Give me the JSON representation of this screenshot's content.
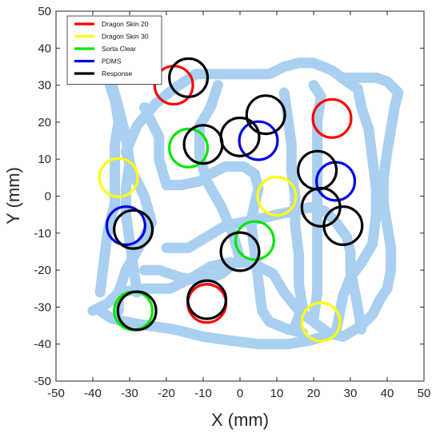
{
  "chart_data": {
    "type": "scatter",
    "xlabel": "X (mm)",
    "ylabel": "Y (mm)",
    "xlim": [
      -50,
      50
    ],
    "ylim": [
      -50,
      50
    ],
    "xticks": [
      -50,
      -40,
      -30,
      -20,
      -10,
      0,
      10,
      20,
      30,
      40,
      50
    ],
    "yticks": [
      -50,
      -40,
      -30,
      -20,
      -10,
      0,
      10,
      20,
      30,
      40,
      50
    ],
    "grid": false,
    "legend_position": "top-left",
    "circle_radius_mm": 5.2,
    "series": [
      {
        "name": "Dragon Skin 20",
        "color": "#ff0000",
        "points": [
          [
            -18,
            30
          ],
          [
            25,
            21
          ],
          [
            -9,
            -29
          ]
        ]
      },
      {
        "name": "Dragon Skin 30",
        "color": "#ffff00",
        "points": [
          [
            -33,
            5
          ],
          [
            10,
            0
          ],
          [
            22,
            -34
          ]
        ]
      },
      {
        "name": "Sorta Clear",
        "color": "#00e600",
        "points": [
          [
            -14,
            13
          ],
          [
            4,
            -12
          ],
          [
            -29,
            -31
          ]
        ]
      },
      {
        "name": "PDMS",
        "color": "#0000e6",
        "points": [
          [
            5,
            15
          ],
          [
            26,
            4
          ],
          [
            -31,
            -8
          ]
        ]
      },
      {
        "name": "Response",
        "color": "#000000",
        "points": [
          [
            -14,
            32
          ],
          [
            7,
            22
          ],
          [
            0,
            16
          ],
          [
            -10,
            14
          ],
          [
            21,
            7
          ],
          [
            22,
            -3
          ],
          [
            28,
            -8
          ],
          [
            -29,
            -9
          ],
          [
            0,
            -15
          ],
          [
            -28,
            -31
          ],
          [
            -9,
            -28
          ]
        ]
      }
    ],
    "trace": {
      "color": "#a9d0f0",
      "paths": [
        [
          [
            -33,
            -31
          ],
          [
            -33,
            -26
          ],
          [
            -31,
            -20
          ],
          [
            -27,
            -13
          ],
          [
            -24,
            -7
          ],
          [
            -26,
            0
          ],
          [
            -29,
            6
          ],
          [
            -31,
            12
          ],
          [
            -28,
            19
          ],
          [
            -23,
            25
          ],
          [
            -18,
            29
          ],
          [
            -12,
            33
          ],
          [
            -5,
            33
          ],
          [
            2,
            33
          ],
          [
            8,
            33
          ],
          [
            12,
            35
          ],
          [
            16,
            36
          ],
          [
            20,
            36
          ],
          [
            25,
            34
          ],
          [
            29,
            31
          ],
          [
            32,
            29
          ],
          [
            33,
            24
          ],
          [
            35,
            18
          ],
          [
            36,
            10
          ],
          [
            37,
            2
          ],
          [
            37,
            -5
          ],
          [
            36,
            -13
          ],
          [
            33,
            -18
          ],
          [
            30,
            -22
          ],
          [
            28,
            -27
          ],
          [
            27,
            -32
          ],
          [
            26,
            -37
          ],
          [
            19,
            -39
          ],
          [
            13,
            -40
          ],
          [
            5,
            -40
          ],
          [
            -3,
            -39
          ],
          [
            -10,
            -38
          ],
          [
            -18,
            -36
          ],
          [
            -25,
            -35
          ],
          [
            -31,
            -34
          ],
          [
            -35,
            -33
          ],
          [
            -38,
            -31
          ]
        ],
        [
          [
            -26,
            24
          ],
          [
            -24,
            20
          ],
          [
            -22,
            16
          ],
          [
            -22,
            10
          ],
          [
            -20,
            3
          ],
          [
            -16,
            3
          ],
          [
            -11,
            4
          ],
          [
            -8,
            6
          ],
          [
            -4,
            8
          ],
          [
            1,
            8
          ],
          [
            4,
            6
          ],
          [
            5,
            2
          ],
          [
            4,
            -2
          ],
          [
            3,
            -7
          ],
          [
            4,
            -15
          ],
          [
            5,
            -23
          ],
          [
            6,
            -31
          ],
          [
            8,
            -34
          ],
          [
            13,
            -36
          ],
          [
            17,
            -37
          ]
        ],
        [
          [
            -35,
            31
          ],
          [
            -33,
            24
          ],
          [
            -31,
            16
          ],
          [
            -30,
            9
          ],
          [
            -31,
            2
          ],
          [
            -31,
            -5
          ],
          [
            -30,
            -12
          ],
          [
            -29,
            -19
          ],
          [
            -28,
            -26
          ]
        ],
        [
          [
            -38,
            -26
          ],
          [
            -37,
            -18
          ],
          [
            -36,
            -10
          ],
          [
            -34,
            -2
          ],
          [
            -34,
            6
          ],
          [
            -34,
            14
          ],
          [
            -33,
            20
          ],
          [
            -34,
            26
          ],
          [
            -36,
            32
          ]
        ],
        [
          [
            20,
            30
          ],
          [
            22,
            27
          ],
          [
            21,
            20
          ],
          [
            21,
            13
          ],
          [
            21,
            6
          ],
          [
            21,
            -2
          ],
          [
            21,
            -10
          ],
          [
            21,
            -18
          ],
          [
            21,
            -26
          ],
          [
            20,
            -33
          ]
        ],
        [
          [
            12,
            28
          ],
          [
            13,
            21
          ],
          [
            14,
            14
          ],
          [
            14,
            7
          ],
          [
            15,
            0
          ],
          [
            15,
            -8
          ],
          [
            16,
            -16
          ],
          [
            16,
            -24
          ],
          [
            17,
            -30
          ],
          [
            15,
            -35
          ]
        ],
        [
          [
            -6,
            30
          ],
          [
            -8,
            24
          ],
          [
            -11,
            19
          ],
          [
            -11,
            11
          ],
          [
            -9,
            4
          ],
          [
            -5,
            -3
          ],
          [
            -2,
            -10
          ],
          [
            0,
            -17
          ],
          [
            -5,
            -21
          ],
          [
            -10,
            -23
          ],
          [
            -16,
            -22
          ],
          [
            -22,
            -20
          ],
          [
            -26,
            -20
          ]
        ],
        [
          [
            -40,
            -31
          ],
          [
            -36,
            -29
          ],
          [
            -33,
            -26
          ],
          [
            -26,
            -25
          ],
          [
            -19,
            -25
          ],
          [
            -13,
            -22
          ],
          [
            -8,
            -19
          ],
          [
            -3,
            -18
          ],
          [
            3,
            -18
          ],
          [
            9,
            -21
          ],
          [
            12,
            -26
          ],
          [
            16,
            -31
          ],
          [
            20,
            -34
          ],
          [
            24,
            -37
          ],
          [
            28,
            -38
          ],
          [
            33,
            -35
          ],
          [
            36,
            -32
          ],
          [
            38,
            -28
          ],
          [
            40,
            -25
          ],
          [
            41,
            -20
          ],
          [
            41,
            -14
          ],
          [
            40,
            -8
          ],
          [
            39,
            -2
          ],
          [
            39,
            5
          ],
          [
            40,
            12
          ],
          [
            41,
            18
          ],
          [
            42,
            24
          ],
          [
            43,
            28
          ],
          [
            40,
            31
          ],
          [
            37,
            32
          ],
          [
            33,
            32
          ],
          [
            28,
            32
          ]
        ],
        [
          [
            -20,
            -14
          ],
          [
            -14,
            -14
          ],
          [
            -9,
            -11
          ],
          [
            -4,
            -8
          ],
          [
            1,
            -7
          ],
          [
            6,
            -6
          ],
          [
            10,
            -5
          ],
          [
            15,
            -4
          ],
          [
            19,
            -3
          ],
          [
            23,
            -4
          ],
          [
            26,
            -7
          ],
          [
            29,
            -11
          ],
          [
            30,
            -15
          ],
          [
            30,
            -20
          ],
          [
            31,
            -25
          ],
          [
            32,
            -30
          ],
          [
            33,
            -36
          ]
        ]
      ]
    }
  }
}
